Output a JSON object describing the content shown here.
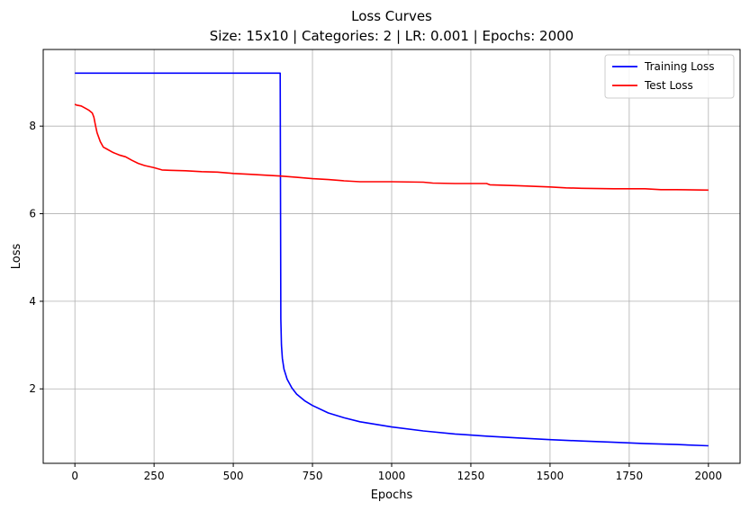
{
  "chart_data": {
    "type": "line",
    "title": "Loss Curves",
    "subtitle": "Size: 15x10 | Categories: 2 | LR: 0.001 | Epochs: 2000",
    "xlabel": "Epochs",
    "ylabel": "Loss",
    "xlim": [
      -100,
      2100
    ],
    "ylim": [
      0.3,
      9.75
    ],
    "xticks": [
      0,
      250,
      500,
      750,
      1000,
      1250,
      1500,
      1750,
      2000
    ],
    "yticks": [
      2,
      4,
      6,
      8
    ],
    "grid": true,
    "legend_position": "top-right",
    "series": [
      {
        "name": "Training Loss",
        "color": "#0000ff",
        "x": [
          0,
          648,
          650,
          652,
          655,
          660,
          670,
          685,
          700,
          725,
          750,
          800,
          850,
          900,
          1000,
          1100,
          1200,
          1300,
          1400,
          1500,
          1600,
          1700,
          1800,
          1900,
          2000
        ],
        "y": [
          9.21,
          9.21,
          3.6,
          3.0,
          2.7,
          2.45,
          2.22,
          2.02,
          1.88,
          1.73,
          1.62,
          1.45,
          1.34,
          1.25,
          1.13,
          1.04,
          0.97,
          0.92,
          0.88,
          0.84,
          0.81,
          0.78,
          0.75,
          0.73,
          0.7
        ]
      },
      {
        "name": "Test Loss",
        "color": "#ff0000",
        "x": [
          0,
          5,
          20,
          35,
          45,
          55,
          60,
          65,
          70,
          80,
          90,
          100,
          120,
          140,
          160,
          180,
          200,
          220,
          250,
          275,
          300,
          350,
          400,
          450,
          500,
          550,
          600,
          650,
          700,
          750,
          800,
          850,
          900,
          1000,
          1100,
          1130,
          1200,
          1300,
          1310,
          1400,
          1500,
          1550,
          1600,
          1700,
          1800,
          1850,
          1900,
          2000
        ],
        "y": [
          8.5,
          8.48,
          8.46,
          8.4,
          8.36,
          8.3,
          8.2,
          8.02,
          7.85,
          7.65,
          7.52,
          7.48,
          7.4,
          7.34,
          7.3,
          7.22,
          7.15,
          7.1,
          7.05,
          7.0,
          6.99,
          6.98,
          6.96,
          6.95,
          6.92,
          6.9,
          6.88,
          6.86,
          6.83,
          6.8,
          6.78,
          6.75,
          6.73,
          6.73,
          6.72,
          6.7,
          6.69,
          6.69,
          6.66,
          6.64,
          6.61,
          6.59,
          6.58,
          6.57,
          6.57,
          6.55,
          6.55,
          6.54
        ]
      }
    ]
  }
}
